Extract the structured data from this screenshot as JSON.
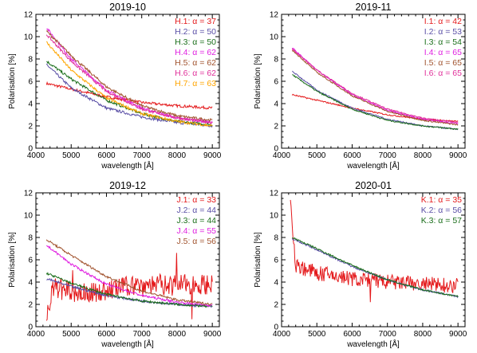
{
  "chart_data": [
    {
      "type": "line",
      "title": "2019-10",
      "xlabel": "wavelength [Å]",
      "ylabel": "Polarisation [%]",
      "xlim": [
        4000,
        9200
      ],
      "ylim": [
        0,
        12
      ],
      "xticks": [
        4000,
        5000,
        6000,
        7000,
        8000,
        9000
      ],
      "yticks": [
        0,
        2,
        4,
        6,
        8,
        10,
        12
      ],
      "legend_position": "top-right",
      "series": [
        {
          "name": "H.1: α = 37",
          "color": "#e41a1c",
          "noise": 0.12,
          "x": [
            4300,
            5000,
            6000,
            7000,
            8000,
            9000
          ],
          "y": [
            5.8,
            5.3,
            4.6,
            4.1,
            3.8,
            3.6
          ]
        },
        {
          "name": "H.2: α = 50",
          "color": "#5a4fa6",
          "noise": 0.12,
          "x": [
            4300,
            5000,
            6000,
            7000,
            8000,
            9000
          ],
          "y": [
            7.5,
            5.4,
            3.6,
            2.8,
            2.3,
            2.0
          ]
        },
        {
          "name": "H.3: α = 50",
          "color": "#1a6e1a",
          "noise": 0.12,
          "x": [
            4300,
            5000,
            6000,
            7000,
            8000,
            9000
          ],
          "y": [
            7.8,
            6.2,
            4.3,
            3.1,
            2.4,
            2.1
          ]
        },
        {
          "name": "H.4: α = 62",
          "color": "#e020e0",
          "noise": 0.12,
          "x": [
            4300,
            5000,
            6000,
            7000,
            8000,
            9000
          ],
          "y": [
            10.8,
            8.0,
            5.2,
            3.6,
            2.7,
            2.3
          ]
        },
        {
          "name": "H.5: α = 62",
          "color": "#a0522d",
          "noise": 0.12,
          "x": [
            4300,
            5000,
            6000,
            7000,
            8000,
            9000
          ],
          "y": [
            10.5,
            8.3,
            5.5,
            3.8,
            2.9,
            2.5
          ]
        },
        {
          "name": "H.6: α = 62",
          "color": "#e0309a",
          "noise": 0.12,
          "x": [
            4300,
            5000,
            6000,
            7000,
            8000,
            9000
          ],
          "y": [
            10.2,
            7.8,
            5.1,
            3.5,
            2.7,
            2.3
          ]
        },
        {
          "name": "H.7: α = 63",
          "color": "#ffa500",
          "noise": 0.12,
          "x": [
            4300,
            5000,
            6000,
            7000,
            8000,
            9000
          ],
          "y": [
            9.5,
            7.0,
            4.5,
            3.1,
            2.4,
            2.0
          ]
        }
      ]
    },
    {
      "type": "line",
      "title": "2019-11",
      "xlabel": "wavelength [Å]",
      "ylabel": "Polarisation [%]",
      "xlim": [
        4000,
        9200
      ],
      "ylim": [
        0,
        12
      ],
      "xticks": [
        4000,
        5000,
        6000,
        7000,
        8000,
        9000
      ],
      "yticks": [
        0,
        2,
        4,
        6,
        8,
        10,
        12
      ],
      "legend_position": "top-right",
      "series": [
        {
          "name": "I.1: α = 42",
          "color": "#e41a1c",
          "noise": 0.06,
          "x": [
            4300,
            5000,
            6000,
            7000,
            8000,
            9000
          ],
          "y": [
            4.8,
            4.3,
            3.6,
            3.0,
            2.6,
            2.4
          ]
        },
        {
          "name": "I.2: α = 53",
          "color": "#5a4fa6",
          "noise": 0.06,
          "x": [
            4300,
            5000,
            6000,
            7000,
            8000,
            9000
          ],
          "y": [
            6.9,
            5.2,
            3.6,
            2.6,
            2.0,
            1.7
          ]
        },
        {
          "name": "I.3: α = 54",
          "color": "#1a6e1a",
          "noise": 0.06,
          "x": [
            4300,
            5000,
            6000,
            7000,
            8000,
            9000
          ],
          "y": [
            6.6,
            5.1,
            3.5,
            2.5,
            2.0,
            1.7
          ]
        },
        {
          "name": "I.4: α = 65",
          "color": "#e020e0",
          "noise": 0.06,
          "x": [
            4300,
            5000,
            6000,
            7000,
            8000,
            9000
          ],
          "y": [
            9.0,
            7.0,
            4.8,
            3.4,
            2.6,
            2.2
          ]
        },
        {
          "name": "I.5: α = 65",
          "color": "#a0522d",
          "noise": 0.06,
          "x": [
            4300,
            5000,
            6000,
            7000,
            8000,
            9000
          ],
          "y": [
            8.8,
            6.8,
            4.7,
            3.3,
            2.5,
            2.1
          ]
        },
        {
          "name": "I.6: α = 65",
          "color": "#e0309a",
          "noise": 0.06,
          "x": [
            4300,
            5000,
            6000,
            7000,
            8000,
            9000
          ],
          "y": [
            8.9,
            7.0,
            4.9,
            3.5,
            2.7,
            2.3
          ]
        }
      ]
    },
    {
      "type": "line",
      "title": "2019-12",
      "xlabel": "wavelength [Å]",
      "ylabel": "Polarisation [%]",
      "xlim": [
        4000,
        9200
      ],
      "ylim": [
        0,
        12
      ],
      "xticks": [
        4000,
        5000,
        6000,
        7000,
        8000,
        9000
      ],
      "yticks": [
        0,
        2,
        4,
        6,
        8,
        10,
        12
      ],
      "legend_position": "top-right",
      "series": [
        {
          "name": "J.1: α = 33",
          "color": "#e41a1c",
          "noise": 0.9,
          "x": [
            4300,
            4500,
            5000,
            5500,
            6000,
            6500,
            7000,
            8000,
            9000
          ],
          "y": [
            1.0,
            3.5,
            3.0,
            3.0,
            3.2,
            3.6,
            3.8,
            3.8,
            3.8
          ]
        },
        {
          "name": "J.2: α = 44",
          "color": "#5a4fa6",
          "noise": 0.1,
          "x": [
            4300,
            5000,
            6000,
            7000,
            8000,
            9000
          ],
          "y": [
            4.3,
            3.6,
            2.8,
            2.3,
            2.0,
            1.8
          ]
        },
        {
          "name": "J.3: α = 44",
          "color": "#1a6e1a",
          "noise": 0.1,
          "x": [
            4300,
            5000,
            6000,
            7000,
            8000,
            9000
          ],
          "y": [
            4.8,
            3.9,
            2.9,
            2.3,
            2.0,
            1.8
          ]
        },
        {
          "name": "J.4: α = 55",
          "color": "#e020e0",
          "noise": 0.1,
          "x": [
            4300,
            5000,
            6000,
            7000,
            8000,
            9000
          ],
          "y": [
            7.3,
            5.6,
            3.8,
            2.8,
            2.2,
            1.9
          ]
        },
        {
          "name": "J.5: α = 56",
          "color": "#a0522d",
          "noise": 0.1,
          "x": [
            4300,
            5000,
            6000,
            7000,
            8000,
            9000
          ],
          "y": [
            7.8,
            6.4,
            4.5,
            3.2,
            2.4,
            2.0
          ]
        }
      ]
    },
    {
      "type": "line",
      "title": "2020-01",
      "xlabel": "wavelength [Å]",
      "ylabel": "Polarisation [%]",
      "xlim": [
        4000,
        9200
      ],
      "ylim": [
        0,
        12
      ],
      "xticks": [
        4000,
        5000,
        6000,
        7000,
        8000,
        9000
      ],
      "yticks": [
        0,
        2,
        4,
        6,
        8,
        10,
        12
      ],
      "legend_position": "top-right",
      "series": [
        {
          "name": "K.1: α = 35",
          "color": "#e41a1c",
          "noise": 0.7,
          "x": [
            4250,
            4400,
            5000,
            6000,
            7000,
            8000,
            9000
          ],
          "y": [
            11.5,
            5.5,
            4.8,
            4.3,
            4.0,
            3.8,
            3.7
          ]
        },
        {
          "name": "K.2: α = 56",
          "color": "#5a4fa6",
          "noise": 0.08,
          "x": [
            4300,
            5000,
            6000,
            7000,
            8000,
            9000
          ],
          "y": [
            7.9,
            6.9,
            5.4,
            4.2,
            3.3,
            2.7
          ]
        },
        {
          "name": "K.3: α = 57",
          "color": "#1a6e1a",
          "noise": 0.08,
          "x": [
            4300,
            5000,
            6000,
            7000,
            8000,
            9000
          ],
          "y": [
            8.0,
            7.0,
            5.5,
            4.2,
            3.3,
            2.7
          ]
        }
      ]
    }
  ]
}
